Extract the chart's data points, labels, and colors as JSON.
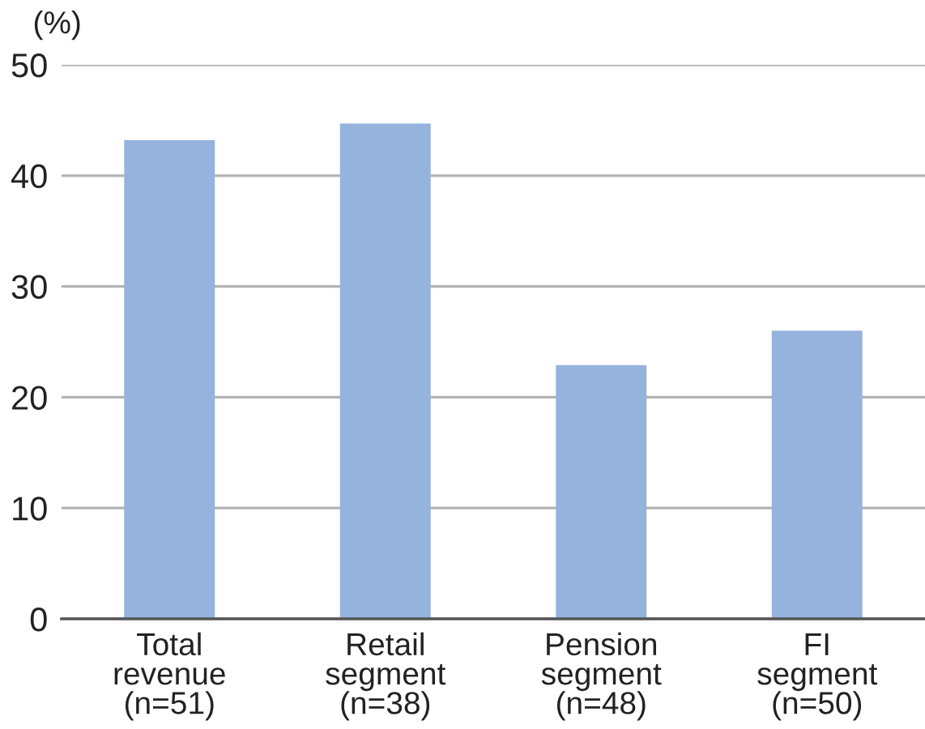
{
  "chart_data": {
    "type": "bar",
    "ylabel": "(%)",
    "categories": [
      "Total\nrevenue\n(n=51)",
      "Retail\nsegment\n(n=38)",
      "Pension\nsegment\n(n=48)",
      "FI\nsegment\n(n=50)"
    ],
    "values": [
      43.2,
      44.7,
      22.9,
      26.0
    ],
    "color": "#95b3dd",
    "ylim": [
      0,
      50
    ],
    "yticks": [
      0,
      10,
      20,
      30,
      40,
      50
    ],
    "grid": "y"
  }
}
